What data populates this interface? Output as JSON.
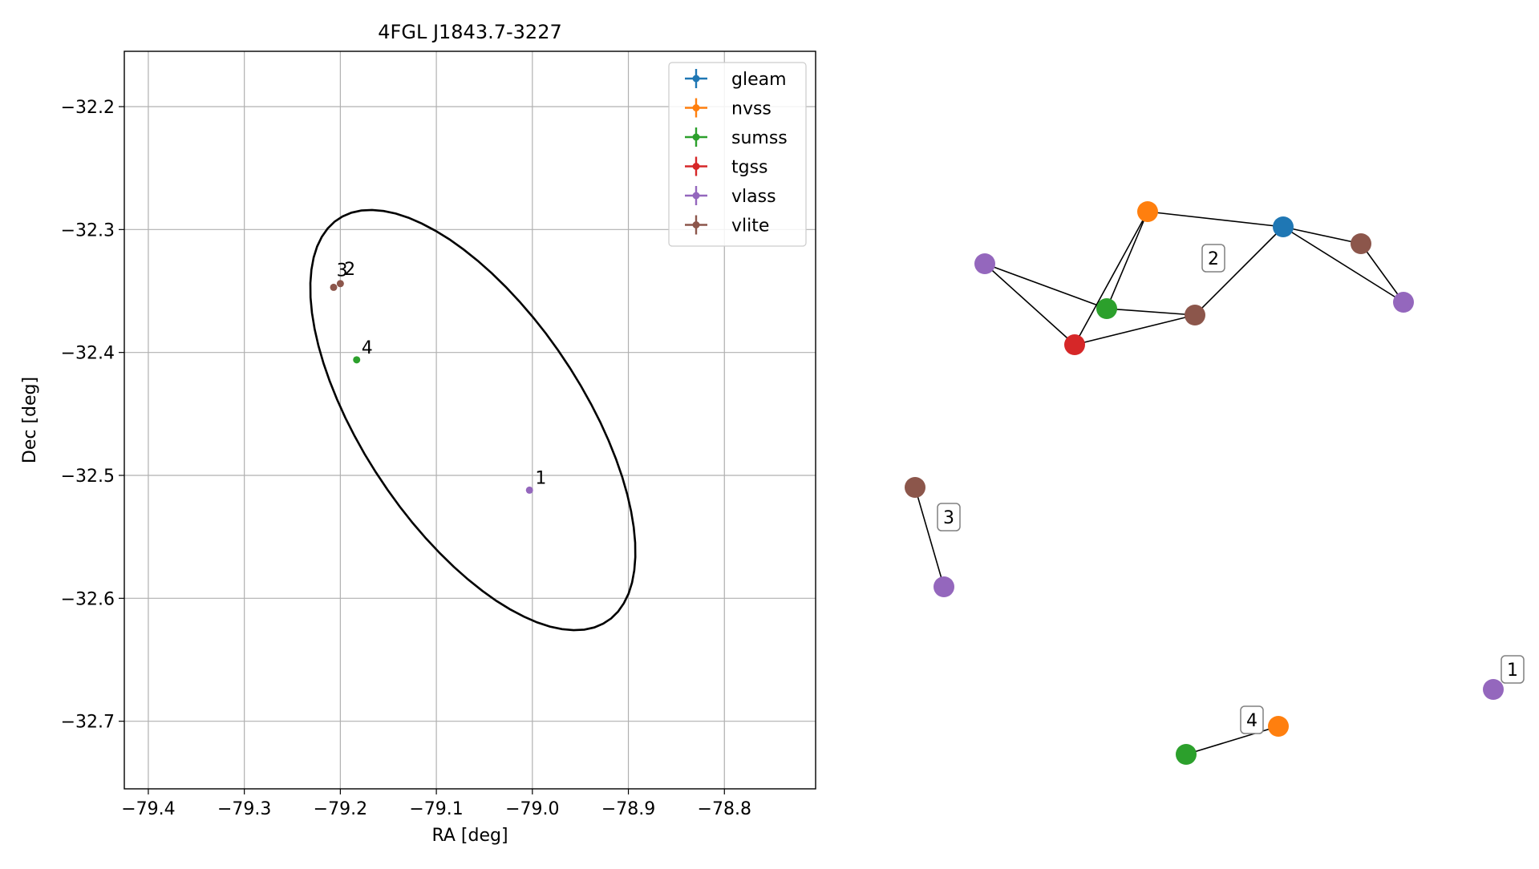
{
  "chart_data": [
    {
      "type": "scatter",
      "title": "4FGL J1843.7-3227",
      "xlabel": "RA [deg]",
      "ylabel": "Dec [deg]",
      "xlim": [
        -79.425,
        -78.705
      ],
      "ylim": [
        -32.755,
        -32.155
      ],
      "xticks": [
        -79.4,
        -79.3,
        -79.2,
        -79.1,
        -79.0,
        -78.9,
        -78.8
      ],
      "xtick_labels": [
        "−79.4",
        "−79.3",
        "−79.2",
        "−79.1",
        "−79.0",
        "−78.9",
        "−78.8"
      ],
      "yticks": [
        -32.2,
        -32.3,
        -32.4,
        -32.5,
        -32.6,
        -32.7
      ],
      "ytick_labels": [
        "−32.2",
        "−32.3",
        "−32.4",
        "−32.5",
        "−32.6",
        "−32.7"
      ],
      "grid": true,
      "legend_position": "top-right",
      "series": [
        {
          "name": "gleam",
          "color": "#1f77b4",
          "points": []
        },
        {
          "name": "nvss",
          "color": "#ff7f0e",
          "points": []
        },
        {
          "name": "sumss",
          "color": "#2ca02c",
          "points": [
            {
              "x": -79.183,
              "y": -32.406
            }
          ]
        },
        {
          "name": "tgss",
          "color": "#d62728",
          "points": []
        },
        {
          "name": "vlass",
          "color": "#9467bd",
          "points": [
            {
              "x": -79.003,
              "y": -32.512
            }
          ]
        },
        {
          "name": "vlite",
          "color": "#8c564b",
          "points": [
            {
              "x": -79.207,
              "y": -32.347
            },
            {
              "x": -79.2,
              "y": -32.344
            }
          ]
        }
      ],
      "annotations": [
        {
          "text": "1",
          "x": -78.997,
          "y": -32.507
        },
        {
          "text": "2",
          "x": -79.196,
          "y": -32.337
        },
        {
          "text": "3",
          "x": -79.204,
          "y": -32.338
        },
        {
          "text": "4",
          "x": -79.178,
          "y": -32.401
        }
      ],
      "ellipse": {
        "center_x": -79.062,
        "center_y": -32.455,
        "semi_major_deg": 0.202,
        "semi_minor_deg": 0.094,
        "angle_deg": 53
      }
    },
    {
      "type": "network",
      "clusters": [
        {
          "label": "1",
          "nodes": [
            "vlass"
          ],
          "edges": []
        },
        {
          "label": "2",
          "nodes": [
            "vlass",
            "nvss",
            "sumss",
            "tgss",
            "vlite",
            "gleam",
            "vlite",
            "vlass"
          ],
          "edges": [
            [
              0,
              2
            ],
            [
              0,
              3
            ],
            [
              1,
              2
            ],
            [
              1,
              3
            ],
            [
              1,
              5
            ],
            [
              2,
              4
            ],
            [
              3,
              4
            ],
            [
              4,
              5
            ],
            [
              5,
              6
            ],
            [
              5,
              7
            ],
            [
              6,
              7
            ]
          ]
        },
        {
          "label": "3",
          "nodes": [
            "vlite",
            "vlass"
          ],
          "edges": [
            [
              0,
              1
            ]
          ]
        },
        {
          "label": "4",
          "nodes": [
            "sumss",
            "nvss"
          ],
          "edges": [
            [
              0,
              1
            ]
          ]
        }
      ]
    }
  ]
}
